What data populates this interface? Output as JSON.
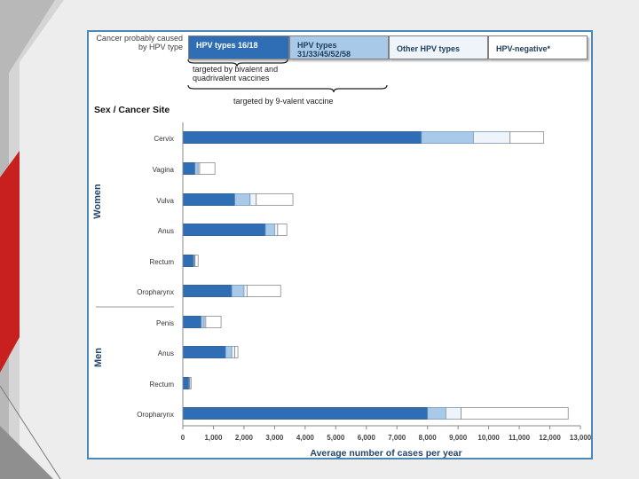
{
  "colors": {
    "hpv16_18": "#2f6eb5",
    "hpv31_58": "#a9c9e8",
    "other_hpv": "#eef4fa",
    "hpv_negative": "#ffffff",
    "frame": "#4a89b5",
    "accent_red": "#c8201f"
  },
  "legend": {
    "intro": "Cancer probably caused by HPV type",
    "items": [
      {
        "label": "HPV types 16/18"
      },
      {
        "label": "HPV types 31/33/45/52/58"
      },
      {
        "label": "Other HPV types"
      },
      {
        "label": "HPV-negative*"
      }
    ],
    "brace_bivalent": "targeted by bivalent and quadrivalent vaccines",
    "brace_9valent": "targeted by 9-valent vaccine"
  },
  "chart_data": {
    "type": "bar",
    "orientation": "horizontal",
    "stacked": true,
    "title": "",
    "ylabel": "Sex / Cancer Site",
    "xlabel": "Average number of cases per year",
    "xlim": [
      0,
      13000
    ],
    "xticks": [
      "0",
      "1,000",
      "2,000",
      "3,000",
      "4,000",
      "5,000",
      "6,000",
      "7,000",
      "8,000",
      "9,000",
      "10,000",
      "11,000",
      "12,000",
      "13,000"
    ],
    "groups": [
      {
        "name": "Women",
        "categories": [
          "Cervix",
          "Vagina",
          "Vulva",
          "Anus",
          "Rectum",
          "Oropharynx"
        ]
      },
      {
        "name": "Men",
        "categories": [
          "Penis",
          "Anus",
          "Rectum",
          "Oropharynx"
        ]
      }
    ],
    "categories": [
      "Cervix",
      "Vagina",
      "Vulva",
      "Anus",
      "Rectum",
      "Oropharynx",
      "Penis",
      "Anus",
      "Rectum",
      "Oropharynx"
    ],
    "series": [
      {
        "name": "HPV types 16/18",
        "values": [
          7800,
          400,
          1700,
          2700,
          350,
          1600,
          600,
          1400,
          200,
          8000
        ]
      },
      {
        "name": "HPV types 31/33/45/52/58",
        "values": [
          1700,
          100,
          500,
          300,
          30,
          400,
          100,
          200,
          20,
          600
        ]
      },
      {
        "name": "Other HPV types",
        "values": [
          1200,
          50,
          200,
          100,
          20,
          100,
          50,
          100,
          10,
          500
        ]
      },
      {
        "name": "HPV-negative*",
        "values": [
          1100,
          500,
          1200,
          300,
          100,
          1100,
          500,
          100,
          40,
          3500
        ]
      }
    ]
  }
}
